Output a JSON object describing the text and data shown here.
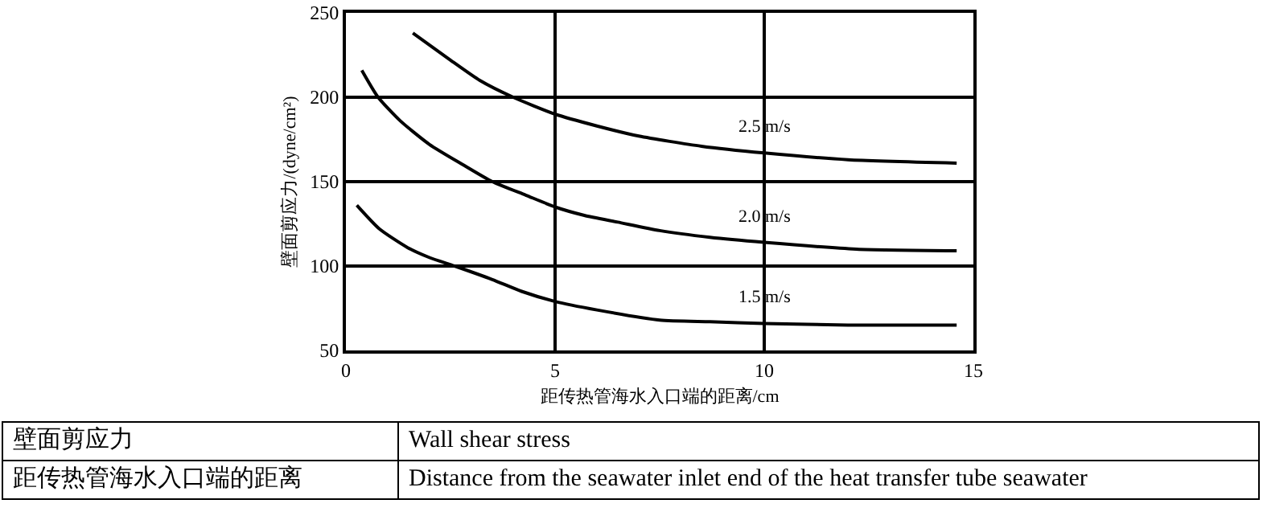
{
  "chart_data": {
    "type": "line",
    "xlabel": "距传热管海水入口端的距离/cm",
    "ylabel": "壁面剪应力/(dyne/cm²)",
    "xlim": [
      0,
      15
    ],
    "xticks": [
      0,
      5,
      10,
      15
    ],
    "ylim": [
      50,
      250
    ],
    "yticks": [
      50,
      100,
      150,
      200,
      250
    ],
    "grid": true,
    "legend": false,
    "marker": "none",
    "line_style": "solid",
    "series": [
      {
        "name": "2.5 m/s",
        "color": "#000000",
        "x": [
          1.6,
          2.5,
          3.2,
          4.0,
          5,
          6,
          7,
          8.5,
          10,
          12,
          14.6
        ],
        "values": [
          238,
          222,
          210,
          200,
          190,
          183,
          177,
          171,
          167,
          163,
          161
        ]
      },
      {
        "name": "2.0 m/s",
        "color": "#000000",
        "x": [
          0.38,
          0.77,
          1.3,
          2.0,
          2.8,
          3.5,
          4.3,
          5,
          5.7,
          6.5,
          7.5,
          8.7,
          10,
          12.2,
          14.6
        ],
        "values": [
          216,
          200,
          186,
          172,
          160,
          150,
          142,
          135,
          130,
          126,
          121,
          117,
          114,
          110,
          109
        ]
      },
      {
        "name": "1.5 m/s",
        "color": "#000000",
        "x": [
          0.26,
          0.8,
          1.47,
          2.0,
          2.6,
          3.5,
          4.2,
          5,
          6,
          7.5,
          8.7,
          10,
          12,
          14.6
        ],
        "values": [
          136,
          122,
          111,
          105,
          100,
          92,
          85,
          79,
          74,
          68,
          67,
          66,
          65,
          65
        ]
      }
    ],
    "annotations": [
      "壁面剪应力",
      "Wall shear stress",
      "距传热管海水入口端的距离",
      "Distance from the seawater inlet end of the heat transfer tube seawater"
    ]
  }
}
